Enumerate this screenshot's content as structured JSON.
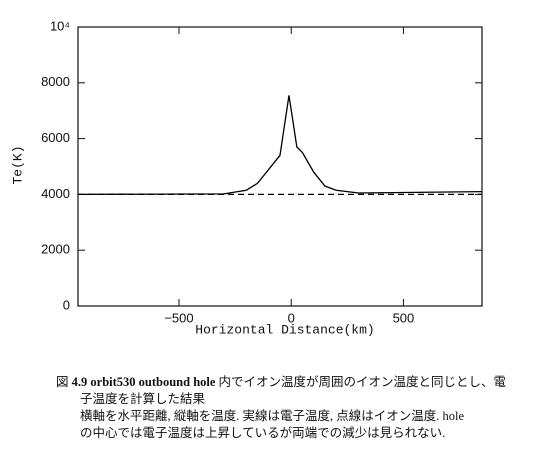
{
  "chart_data": {
    "type": "line",
    "ylabel": "Te(K)",
    "xlabel": "Horizontal Distance(km)",
    "xlim": [
      -950,
      850
    ],
    "xticks": [
      {
        "value": -500,
        "label": "−500"
      },
      0,
      500
    ],
    "ylim": [
      0,
      10000
    ],
    "yticks": [
      0,
      2000,
      4000,
      6000,
      8000,
      {
        "value": 10000,
        "label": "10⁴"
      }
    ],
    "series": [
      {
        "color": "#000000",
        "style": "solid",
        "x": [
          -950,
          -300,
          -200,
          -150,
          -100,
          -50,
          -10,
          25,
          50,
          100,
          150,
          200,
          300,
          850
        ],
        "values": [
          4000,
          4020,
          4150,
          4400,
          4900,
          5400,
          7550,
          5700,
          5500,
          4800,
          4300,
          4150,
          4050,
          4100
        ]
      },
      {
        "color": "#000000",
        "style": "dashed",
        "x": [
          -950,
          850
        ],
        "values": [
          4000,
          4000
        ]
      }
    ]
  },
  "caption": {
    "label": "図",
    "bold": "4.9 orbit530 outbound hole",
    "line1": "内でイオン温度が周囲のイオン温度と同じとし、電",
    "line2": "子温度を計算した結果",
    "line3": "横軸を水平距離, 縦軸を温度. 実線は電子温度, 点線はイオン温度. hole",
    "line4": "の中心では電子温度は上昇しているが両端での減少は見られない."
  }
}
